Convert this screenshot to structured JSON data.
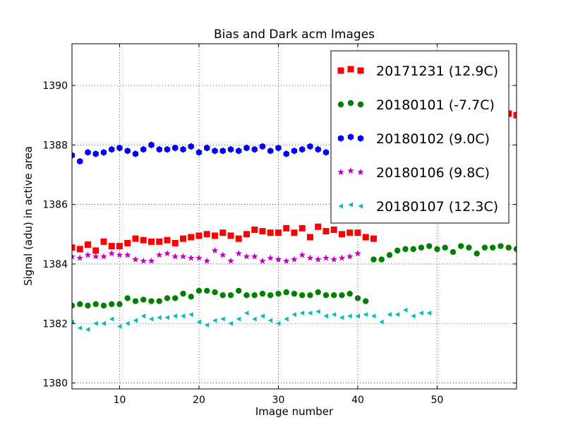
{
  "chart_data": {
    "type": "scatter",
    "title": "Bias and Dark acm Images",
    "xlabel": "Image number",
    "ylabel": "Signal (adu) in active area",
    "xlim": [
      4,
      60
    ],
    "ylim": [
      1379.8,
      1391.4
    ],
    "xticks": [
      10,
      20,
      30,
      40,
      50
    ],
    "yticks": [
      1380,
      1382,
      1384,
      1386,
      1388,
      1390
    ],
    "grid": true,
    "legend_position": "top-right",
    "series": [
      {
        "name": "20171231 (12.9C)",
        "marker": "square",
        "color": "#ff0000",
        "x": [
          4,
          5,
          6,
          7,
          8,
          9,
          10,
          11,
          12,
          13,
          14,
          15,
          16,
          17,
          18,
          19,
          20,
          21,
          22,
          23,
          24,
          25,
          26,
          27,
          28,
          29,
          30,
          31,
          32,
          33,
          34,
          35,
          36,
          37,
          38,
          39,
          40,
          41,
          42,
          59,
          60
        ],
        "y": [
          1384.55,
          1384.5,
          1384.65,
          1384.45,
          1384.75,
          1384.6,
          1384.6,
          1384.7,
          1384.85,
          1384.8,
          1384.75,
          1384.75,
          1384.8,
          1384.7,
          1384.85,
          1384.9,
          1384.95,
          1385.0,
          1384.95,
          1385.05,
          1384.95,
          1384.85,
          1385.0,
          1385.15,
          1385.1,
          1385.05,
          1385.05,
          1385.2,
          1385.05,
          1385.2,
          1384.9,
          1385.25,
          1385.1,
          1385.15,
          1385.0,
          1385.05,
          1385.05,
          1384.9,
          1384.85,
          1389.05,
          1389.0
        ]
      },
      {
        "name": "20180101 (-7.7C)",
        "marker": "circle",
        "color": "#008000",
        "x": [
          4,
          5,
          6,
          7,
          8,
          9,
          10,
          11,
          12,
          13,
          14,
          15,
          16,
          17,
          18,
          19,
          20,
          21,
          22,
          23,
          24,
          25,
          26,
          27,
          28,
          29,
          30,
          31,
          32,
          33,
          34,
          35,
          36,
          37,
          38,
          39,
          40,
          41,
          42,
          43,
          44,
          45,
          46,
          47,
          48,
          49,
          50,
          51,
          52,
          53,
          54,
          55,
          56,
          57,
          58,
          59,
          60
        ],
        "y": [
          1382.6,
          1382.65,
          1382.6,
          1382.65,
          1382.6,
          1382.65,
          1382.65,
          1382.85,
          1382.75,
          1382.8,
          1382.75,
          1382.75,
          1382.85,
          1382.85,
          1383.0,
          1382.9,
          1383.1,
          1383.1,
          1383.05,
          1382.95,
          1382.95,
          1383.1,
          1382.95,
          1382.95,
          1383.0,
          1382.95,
          1383.0,
          1383.05,
          1383.0,
          1382.95,
          1382.95,
          1383.05,
          1382.95,
          1382.95,
          1382.95,
          1383.0,
          1382.85,
          1382.75,
          1384.15,
          1384.15,
          1384.3,
          1384.45,
          1384.5,
          1384.5,
          1384.55,
          1384.6,
          1384.5,
          1384.55,
          1384.4,
          1384.6,
          1384.55,
          1384.35,
          1384.55,
          1384.55,
          1384.6,
          1384.55,
          1384.5
        ]
      },
      {
        "name": "20180102 (9.0C)",
        "marker": "hexagon",
        "color": "#0000ff",
        "x": [
          4,
          5,
          6,
          7,
          8,
          9,
          10,
          11,
          12,
          13,
          14,
          15,
          16,
          17,
          18,
          19,
          20,
          21,
          22,
          23,
          24,
          25,
          26,
          27,
          28,
          29,
          30,
          31,
          32,
          33,
          34,
          35,
          36
        ],
        "y": [
          1387.65,
          1387.45,
          1387.75,
          1387.7,
          1387.75,
          1387.85,
          1387.9,
          1387.8,
          1387.7,
          1387.85,
          1388.0,
          1387.85,
          1387.85,
          1387.9,
          1387.85,
          1387.95,
          1387.75,
          1387.9,
          1387.8,
          1387.8,
          1387.85,
          1387.8,
          1387.9,
          1387.85,
          1387.95,
          1387.8,
          1387.9,
          1387.7,
          1387.8,
          1387.85,
          1387.95,
          1387.85,
          1387.75
        ]
      },
      {
        "name": "20180106 (9.8C)",
        "marker": "star",
        "color": "#bf00bf",
        "x": [
          4,
          5,
          6,
          7,
          8,
          9,
          10,
          11,
          12,
          13,
          14,
          15,
          16,
          17,
          18,
          19,
          20,
          21,
          22,
          23,
          24,
          25,
          26,
          27,
          28,
          29,
          30,
          31,
          32,
          33,
          34,
          35,
          36,
          37,
          38,
          39,
          40
        ],
        "y": [
          1384.25,
          1384.2,
          1384.3,
          1384.25,
          1384.25,
          1384.35,
          1384.3,
          1384.3,
          1384.15,
          1384.1,
          1384.1,
          1384.3,
          1384.35,
          1384.25,
          1384.25,
          1384.2,
          1384.2,
          1384.1,
          1384.45,
          1384.3,
          1384.1,
          1384.35,
          1384.25,
          1384.25,
          1384.1,
          1384.2,
          1384.15,
          1384.1,
          1384.15,
          1384.3,
          1384.2,
          1384.15,
          1384.2,
          1384.15,
          1384.2,
          1384.25,
          1384.35
        ]
      },
      {
        "name": "20180107 (12.3C)",
        "marker": "triangle-left",
        "color": "#00bfbf",
        "x": [
          4,
          5,
          6,
          7,
          8,
          9,
          10,
          11,
          12,
          13,
          14,
          15,
          16,
          17,
          18,
          19,
          20,
          21,
          22,
          23,
          24,
          25,
          26,
          27,
          28,
          29,
          30,
          31,
          32,
          33,
          34,
          35,
          36,
          37,
          38,
          39,
          40,
          41,
          42,
          43,
          44,
          45,
          46,
          47,
          48,
          49
        ],
        "y": [
          1382.05,
          1381.85,
          1381.8,
          1382.0,
          1382.0,
          1382.15,
          1381.9,
          1382.0,
          1382.1,
          1382.25,
          1382.15,
          1382.2,
          1382.2,
          1382.25,
          1382.25,
          1382.3,
          1382.05,
          1381.95,
          1382.1,
          1382.15,
          1382.0,
          1382.15,
          1382.35,
          1382.15,
          1382.25,
          1382.1,
          1382.0,
          1382.15,
          1382.3,
          1382.35,
          1382.35,
          1382.4,
          1382.25,
          1382.3,
          1382.2,
          1382.25,
          1382.25,
          1382.3,
          1382.25,
          1382.05,
          1382.3,
          1382.3,
          1382.45,
          1382.25,
          1382.35,
          1382.35
        ]
      }
    ]
  }
}
